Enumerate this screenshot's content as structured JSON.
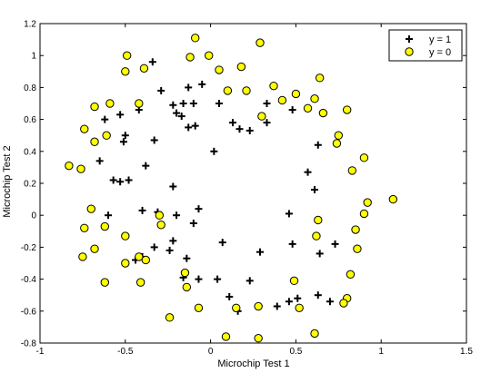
{
  "chart_data": {
    "type": "scatter",
    "xlabel": "Microchip Test 1",
    "ylabel": "Microchip Test 2",
    "xlim": [
      -1,
      1.5
    ],
    "ylim": [
      -0.8,
      1.2
    ],
    "xticks": [
      "-1",
      "-0.5",
      "0",
      "0.5",
      "1",
      "1.5"
    ],
    "yticks": [
      "-0.8",
      "-0.6",
      "-0.4",
      "-0.2",
      "0",
      "0.2",
      "0.4",
      "0.6",
      "0.8",
      "1",
      "1.2"
    ],
    "grid": false,
    "legend_position": "top-right",
    "colors": {
      "positive": "#000000",
      "negative_fill": "#ffff00",
      "negative_edge": "#000000"
    },
    "series": [
      {
        "name": "y = 1",
        "marker": "plus",
        "points": [
          [
            -0.34,
            0.96
          ],
          [
            -0.29,
            0.78
          ],
          [
            -0.22,
            0.69
          ],
          [
            -0.2,
            0.64
          ],
          [
            -0.13,
            0.8
          ],
          [
            -0.1,
            0.7
          ],
          [
            -0.05,
            0.82
          ],
          [
            -0.16,
            0.7
          ],
          [
            -0.17,
            0.62
          ],
          [
            -0.13,
            0.55
          ],
          [
            -0.09,
            0.56
          ],
          [
            -0.42,
            0.66
          ],
          [
            -0.53,
            0.63
          ],
          [
            -0.5,
            0.5
          ],
          [
            -0.33,
            0.47
          ],
          [
            -0.38,
            0.31
          ],
          [
            -0.51,
            0.46
          ],
          [
            -0.62,
            0.6
          ],
          [
            -0.65,
            0.34
          ],
          [
            -0.57,
            0.22
          ],
          [
            -0.48,
            0.22
          ],
          [
            -0.53,
            0.21
          ],
          [
            -0.6,
            0.0
          ],
          [
            -0.4,
            0.03
          ],
          [
            -0.31,
            0.02
          ],
          [
            -0.33,
            -0.2
          ],
          [
            -0.22,
            -0.16
          ],
          [
            -0.4,
            -0.26
          ],
          [
            -0.44,
            -0.28
          ],
          [
            -0.24,
            -0.22
          ],
          [
            -0.14,
            -0.27
          ],
          [
            -0.1,
            -0.05
          ],
          [
            -0.07,
            0.04
          ],
          [
            -0.16,
            -0.39
          ],
          [
            -0.07,
            -0.4
          ],
          [
            0.02,
            0.4
          ],
          [
            0.05,
            0.7
          ],
          [
            0.13,
            0.58
          ],
          [
            0.17,
            0.54
          ],
          [
            0.23,
            0.53
          ],
          [
            0.33,
            0.58
          ],
          [
            0.33,
            0.7
          ],
          [
            0.48,
            0.66
          ],
          [
            0.63,
            0.44
          ],
          [
            0.57,
            0.27
          ],
          [
            0.61,
            0.16
          ],
          [
            0.46,
            0.01
          ],
          [
            0.48,
            -0.18
          ],
          [
            0.29,
            -0.23
          ],
          [
            0.04,
            -0.4
          ],
          [
            0.07,
            -0.17
          ],
          [
            0.23,
            -0.41
          ],
          [
            0.11,
            -0.51
          ],
          [
            0.16,
            -0.6
          ],
          [
            0.39,
            -0.57
          ],
          [
            0.46,
            -0.54
          ],
          [
            0.51,
            -0.52
          ],
          [
            0.64,
            -0.24
          ],
          [
            0.73,
            -0.18
          ],
          [
            0.63,
            -0.5
          ],
          [
            0.7,
            -0.54
          ],
          [
            -0.22,
            0.18
          ],
          [
            -0.2,
            0.0
          ]
        ]
      },
      {
        "name": "y = 0",
        "marker": "circle",
        "points": [
          [
            -0.49,
            1.0
          ],
          [
            -0.5,
            0.9
          ],
          [
            -0.39,
            0.92
          ],
          [
            -0.09,
            1.11
          ],
          [
            -0.12,
            0.99
          ],
          [
            -0.01,
            1.0
          ],
          [
            0.05,
            0.91
          ],
          [
            0.18,
            0.93
          ],
          [
            0.29,
            1.08
          ],
          [
            0.1,
            0.78
          ],
          [
            0.21,
            0.78
          ],
          [
            0.37,
            0.81
          ],
          [
            0.42,
            0.72
          ],
          [
            0.5,
            0.76
          ],
          [
            0.64,
            0.86
          ],
          [
            0.61,
            0.73
          ],
          [
            0.57,
            0.67
          ],
          [
            0.66,
            0.64
          ],
          [
            0.8,
            0.66
          ],
          [
            0.75,
            0.5
          ],
          [
            0.74,
            0.45
          ],
          [
            0.3,
            0.62
          ],
          [
            -0.42,
            0.7
          ],
          [
            -0.68,
            0.68
          ],
          [
            -0.59,
            0.7
          ],
          [
            -0.74,
            0.54
          ],
          [
            -0.61,
            0.5
          ],
          [
            -0.68,
            0.46
          ],
          [
            -0.83,
            0.31
          ],
          [
            -0.76,
            0.29
          ],
          [
            -0.7,
            0.04
          ],
          [
            -0.74,
            -0.08
          ],
          [
            -0.62,
            -0.07
          ],
          [
            -0.68,
            -0.21
          ],
          [
            -0.75,
            -0.26
          ],
          [
            -0.5,
            -0.13
          ],
          [
            -0.5,
            -0.3
          ],
          [
            -0.42,
            -0.26
          ],
          [
            -0.38,
            -0.28
          ],
          [
            -0.62,
            -0.42
          ],
          [
            -0.41,
            -0.42
          ],
          [
            -0.3,
            0.0
          ],
          [
            -0.29,
            -0.06
          ],
          [
            -0.15,
            -0.36
          ],
          [
            -0.14,
            -0.45
          ],
          [
            -0.07,
            -0.58
          ],
          [
            -0.24,
            -0.64
          ],
          [
            0.09,
            -0.76
          ],
          [
            0.15,
            -0.58
          ],
          [
            0.28,
            -0.57
          ],
          [
            0.28,
            -0.77
          ],
          [
            0.49,
            -0.41
          ],
          [
            0.52,
            -0.58
          ],
          [
            0.61,
            -0.74
          ],
          [
            0.8,
            -0.52
          ],
          [
            0.82,
            -0.37
          ],
          [
            0.78,
            -0.55
          ],
          [
            0.86,
            -0.21
          ],
          [
            0.85,
            -0.09
          ],
          [
            0.9,
            0.01
          ],
          [
            0.92,
            0.08
          ],
          [
            1.07,
            0.1
          ],
          [
            0.9,
            0.36
          ],
          [
            0.83,
            0.28
          ],
          [
            0.63,
            -0.03
          ],
          [
            0.62,
            -0.13
          ]
        ]
      }
    ]
  }
}
